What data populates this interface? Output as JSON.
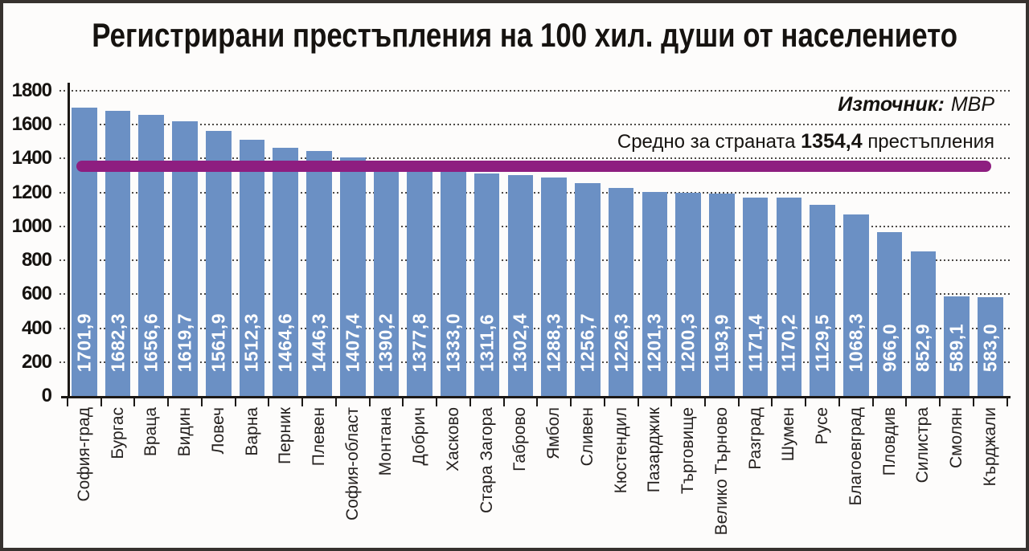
{
  "chart_data": {
    "type": "bar",
    "title": "Регистрирани престъпления на 100 хил. души от населението",
    "source_label": "Източник:",
    "source_value": "МВР",
    "average_prefix": "Средно за страната",
    "average_value_label": "1354,4",
    "average_suffix": "престъпления",
    "average_value": 1354.4,
    "categories": [
      "София-град",
      "Бургас",
      "Враца",
      "Видин",
      "Ловеч",
      "Варна",
      "Перник",
      "Плевен",
      "София-област",
      "Монтана",
      "Добрич",
      "Хасково",
      "Стара Загора",
      "Габрово",
      "Ямбол",
      "Сливен",
      "Кюстендил",
      "Пазарджик",
      "Търговище",
      "Велико Търново",
      "Разград",
      "Шумен",
      "Русе",
      "Благоевград",
      "Пловдив",
      "Силистра",
      "Смолян",
      "Кърджали"
    ],
    "values": [
      1701.9,
      1682.3,
      1656.6,
      1619.7,
      1561.9,
      1512.3,
      1464.6,
      1446.3,
      1407.4,
      1390.2,
      1377.8,
      1333.0,
      1311.6,
      1302.4,
      1288.3,
      1256.7,
      1226.3,
      1201.3,
      1200.3,
      1193.9,
      1171.4,
      1170.2,
      1129.5,
      1068.3,
      966.0,
      852.9,
      589.1,
      583.0
    ],
    "value_labels": [
      "1701,9",
      "1682,3",
      "1656,6",
      "1619,7",
      "1561,9",
      "1512,3",
      "1464,6",
      "1446,3",
      "1407,4",
      "1390,2",
      "1377,8",
      "1333,0",
      "1311,6",
      "1302,4",
      "1288,3",
      "1256,7",
      "1226,3",
      "1201,3",
      "1200,3",
      "1193,9",
      "1171,4",
      "1170,2",
      "1129,5",
      "1068,3",
      "966,0",
      "852,9",
      "589,1",
      "583,0"
    ],
    "y_ticks": [
      0,
      200,
      400,
      600,
      800,
      1000,
      1200,
      1400,
      1600,
      1800
    ],
    "ylim": [
      0,
      1800
    ],
    "xlabel": "",
    "ylabel": "",
    "grid": true,
    "legend": "none",
    "bar_color": "#6b90c4",
    "avg_line_color": "#8e1e80",
    "axis_color": "#1b1815",
    "text_color": "#161310"
  }
}
